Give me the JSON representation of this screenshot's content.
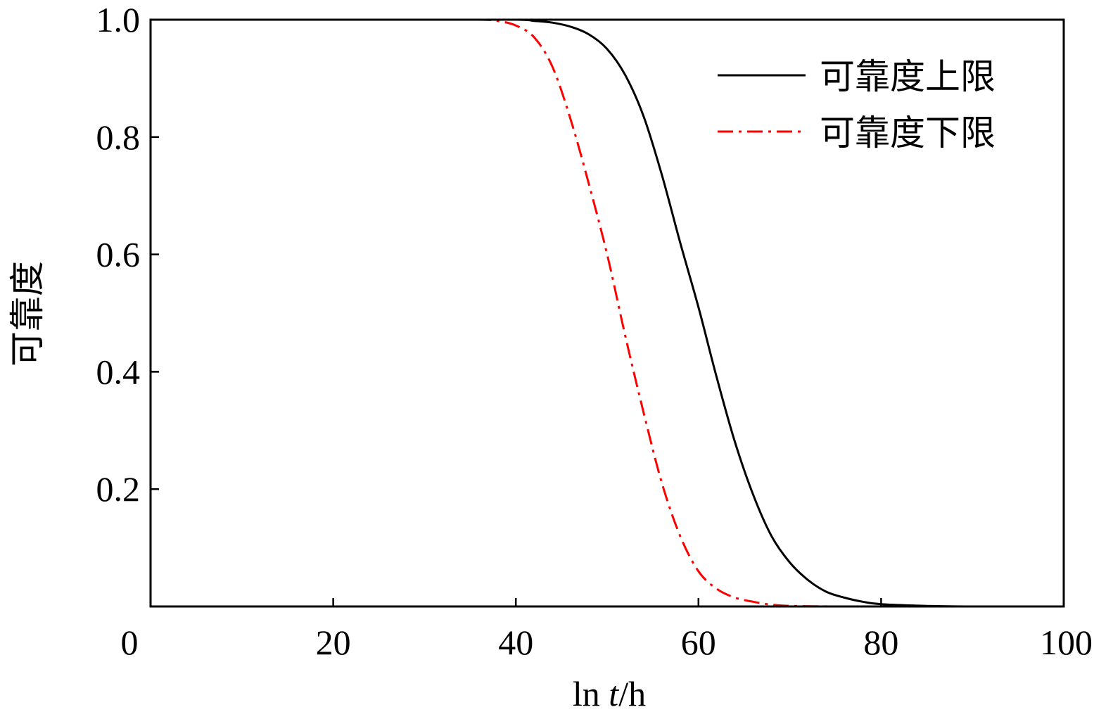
{
  "chart_data": {
    "type": "line",
    "title": "",
    "xlabel_prefix": "ln ",
    "xlabel_italic": "t",
    "xlabel_suffix": "/h",
    "ylabel": "可靠度",
    "xlim": [
      0,
      100
    ],
    "ylim": [
      0,
      1.0
    ],
    "x_ticks": [
      "0",
      "20",
      "40",
      "60",
      "80",
      "100"
    ],
    "y_ticks": [
      "0.2",
      "0.4",
      "0.6",
      "0.8",
      "1.0"
    ],
    "x_tick_values": [
      0,
      20,
      40,
      60,
      80,
      100
    ],
    "y_tick_values": [
      0.2,
      0.4,
      0.6,
      0.8,
      1.0
    ],
    "grid": false,
    "legend_position": "top-right",
    "series": [
      {
        "name": "可靠度上限",
        "color": "#000000",
        "style": "solid",
        "x": [
          0,
          10,
          20,
          30,
          40,
          42,
          44,
          46,
          48,
          50,
          52,
          54,
          56,
          58,
          60,
          62,
          64,
          66,
          68,
          70,
          72,
          74,
          76,
          78,
          80,
          85,
          90,
          95,
          100
        ],
        "y": [
          1.0,
          1.0,
          1.0,
          1.0,
          1.0,
          0.998,
          0.995,
          0.988,
          0.975,
          0.95,
          0.905,
          0.835,
          0.735,
          0.62,
          0.51,
          0.39,
          0.28,
          0.19,
          0.12,
          0.075,
          0.045,
          0.025,
          0.015,
          0.008,
          0.004,
          0.001,
          0.0,
          0.0,
          0.0
        ]
      },
      {
        "name": "可靠度下限",
        "color": "#ff0000",
        "style": "dashdot",
        "x": [
          0,
          10,
          20,
          30,
          36,
          38,
          40,
          42,
          44,
          46,
          48,
          50,
          52,
          54,
          56,
          58,
          60,
          62,
          64,
          66,
          68,
          70,
          75,
          80,
          90,
          100
        ],
        "y": [
          1.0,
          1.0,
          1.0,
          1.0,
          1.0,
          0.998,
          0.99,
          0.97,
          0.92,
          0.83,
          0.72,
          0.6,
          0.46,
          0.33,
          0.21,
          0.12,
          0.06,
          0.03,
          0.015,
          0.008,
          0.003,
          0.001,
          0.0,
          0.0,
          0.0,
          0.0
        ]
      }
    ]
  }
}
